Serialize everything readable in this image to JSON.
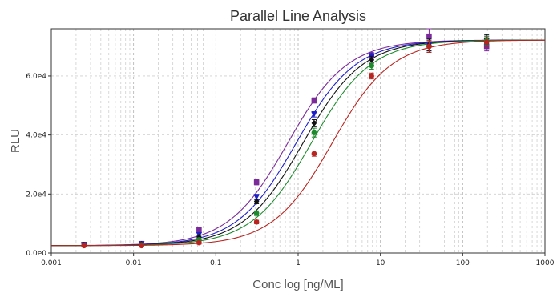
{
  "chart_data": {
    "type": "scatter",
    "title": "Parallel Line Analysis",
    "xlabel": "Conc log [ng/ML]",
    "ylabel": "RLU",
    "x_scale": "log",
    "xlim": [
      0.001,
      1000
    ],
    "ylim": [
      0,
      76000
    ],
    "grid": true,
    "x_ticks": [
      0.001,
      0.01,
      0.1,
      1,
      10,
      100,
      1000
    ],
    "x_tick_labels": [
      "0.001",
      "0.01",
      "0.1",
      "1",
      "10",
      "100",
      "1000"
    ],
    "y_ticks": [
      0,
      20000,
      40000,
      60000
    ],
    "y_tick_labels": [
      "0.0e0",
      "2.0e4",
      "4.0e4",
      "6.0e4"
    ],
    "x": [
      0.0025,
      0.0125,
      0.0625,
      0.3125,
      1.5625,
      7.8125,
      39.0625,
      195.3125
    ],
    "series": [
      {
        "color": "#7b2a9a",
        "marker": "square",
        "ec50": 0.75,
        "values": [
          2900,
          3200,
          8000,
          24000,
          51700,
          66800,
          73500,
          70000
        ],
        "err": [
          400,
          400,
          800,
          900,
          900,
          1200,
          2500,
          1500
        ]
      },
      {
        "color": "#1f1fc8",
        "marker": "triangle-down",
        "ec50": 0.95,
        "values": [
          2800,
          3100,
          6200,
          19000,
          47000,
          66500,
          70500,
          72000
        ],
        "err": [
          400,
          400,
          700,
          900,
          900,
          1200,
          2000,
          1500
        ]
      },
      {
        "color": "#111111",
        "marker": "diamond",
        "ec50": 1.15,
        "values": [
          2700,
          3000,
          5400,
          17500,
          44000,
          65500,
          70500,
          72500
        ],
        "err": [
          400,
          400,
          600,
          800,
          1200,
          1200,
          2000,
          1500
        ]
      },
      {
        "color": "#1e8a2e",
        "marker": "circle",
        "ec50": 1.45,
        "values": [
          2600,
          2800,
          4500,
          13500,
          40800,
          63500,
          70000,
          72000
        ],
        "err": [
          400,
          400,
          600,
          800,
          1500,
          1200,
          2000,
          1500
        ]
      },
      {
        "color": "#b8241f",
        "marker": "circle",
        "ec50": 2.6,
        "values": [
          2500,
          2500,
          3500,
          10500,
          33700,
          60000,
          70000,
          71500
        ],
        "err": [
          400,
          400,
          500,
          600,
          900,
          1000,
          2000,
          1500
        ]
      }
    ]
  }
}
